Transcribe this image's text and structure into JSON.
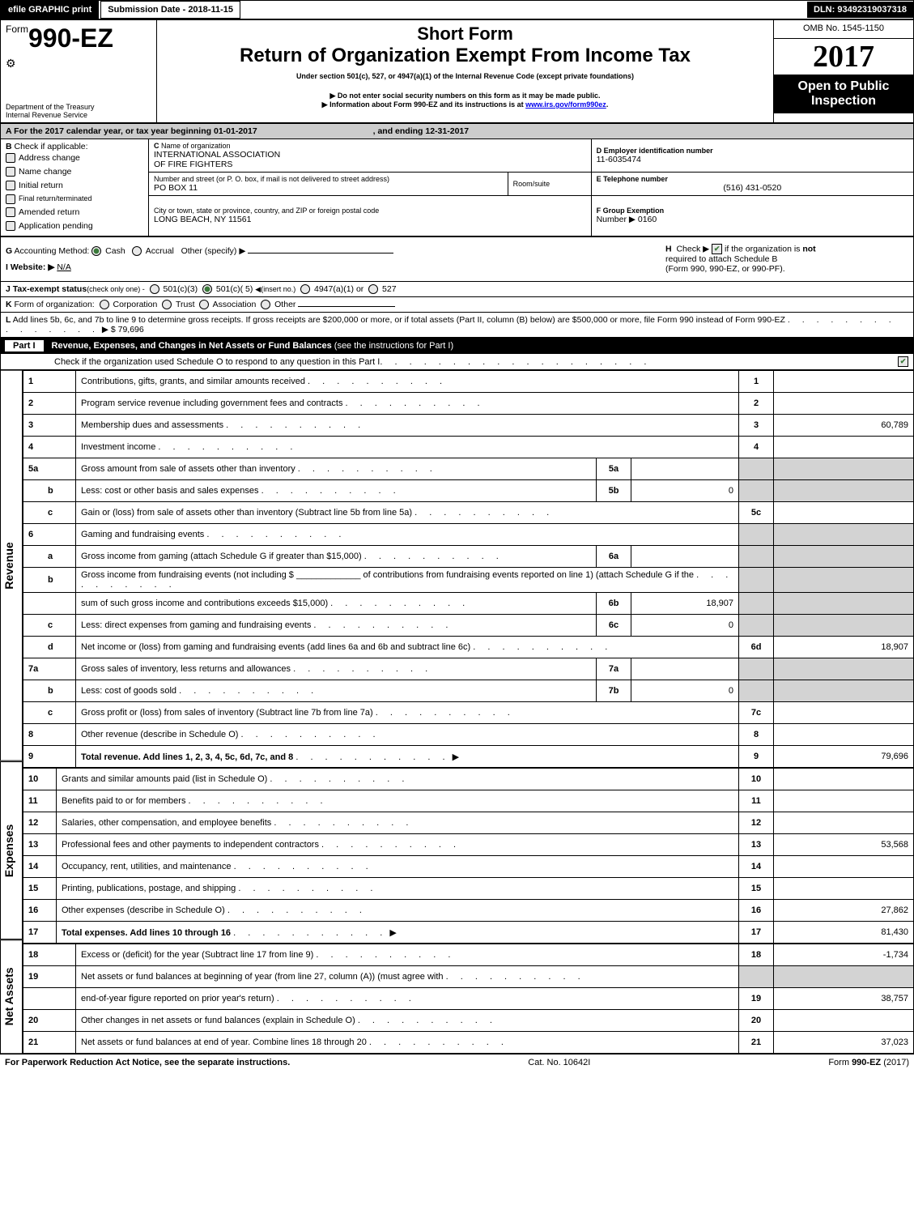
{
  "top_bar": {
    "efile_btn": "efile GRAPHIC print",
    "submission_date_label": "Submission Date - 2018-11-15",
    "dln": "DLN: 93492319037318"
  },
  "header": {
    "form_prefix": "Form",
    "form_number": "990-EZ",
    "dept": "Department of the Treasury",
    "irs": "Internal Revenue Service",
    "short_form": "Short Form",
    "main_title": "Return of Organization Exempt From Income Tax",
    "subtitle": "Under section 501(c), 527, or 4947(a)(1) of the Internal Revenue Code (except private foundations)",
    "note1_prefix": "▶ Do not enter social security numbers on this form as it may be made public.",
    "note2_prefix": "▶ Information about Form 990-EZ and its instructions is at ",
    "note2_link_text": "www.irs.gov/form990ez",
    "note2_link_url": "www.irs.gov/form990ez",
    "note2_suffix": ".",
    "omb": "OMB No. 1545-1150",
    "year": "2017",
    "open_public_l1": "Open to Public",
    "open_public_l2": "Inspection"
  },
  "section_a": {
    "a_label": "A",
    "a_text_prefix": "For the 2017 calendar year, or tax year beginning ",
    "a_begin": "01-01-2017",
    "a_text_mid": ", and ending ",
    "a_end": "12-31-2017",
    "b_label": "B",
    "b_text": "Check if applicable:",
    "b_items": [
      "Address change",
      "Name change",
      "Initial return",
      "Final return/terminated",
      "Amended return",
      "Application pending"
    ],
    "c_label": "C",
    "c_text": "Name of organization",
    "c_org_l1": "INTERNATIONAL ASSOCIATION",
    "c_org_l2": "OF FIRE FIGHTERS",
    "c_addr_label": "Number and street (or P. O. box, if mail is not delivered to street address)",
    "c_addr": "PO BOX 11",
    "c_room_label": "Room/suite",
    "c_city_label": "City or town, state or province, country, and ZIP or foreign postal code",
    "c_city": "LONG BEACH, NY  11561",
    "d_label": "D Employer identification number",
    "d_ein": "11-6035474",
    "e_label": "E Telephone number",
    "e_phone": "(516) 431-0520",
    "f_label": "F Group Exemption",
    "f_label2": "Number ▶",
    "f_num": "0160"
  },
  "section_g": {
    "g_label": "G",
    "g_text": "Accounting Method:",
    "g_cash": "Cash",
    "g_accrual": "Accrual",
    "g_other": "Other (specify) ▶",
    "h_label": "H",
    "h_text_prefix": "Check ▶",
    "h_text_suffix": "if the organization is",
    "h_not": "not",
    "h_text_l2": "required to attach Schedule B",
    "h_text_l3": "(Form 990, 990-EZ, or 990-PF).",
    "i_label": "I Website: ▶",
    "i_website": "N/A",
    "j_label": "J Tax-exempt status",
    "j_note": "(check only one) -",
    "j_501c3": "501(c)(3)",
    "j_501c": "501(c)( 5)",
    "j_501c_insert": "◀(insert no.)",
    "j_4947": "4947(a)(1) or",
    "j_527": "527",
    "k_label": "K",
    "k_text": "Form of organization:",
    "k_corp": "Corporation",
    "k_trust": "Trust",
    "k_assoc": "Association",
    "k_other": "Other",
    "l_label": "L",
    "l_text": "Add lines 5b, 6c, and 7b to line 9 to determine gross receipts. If gross receipts are $200,000 or more, or if total assets (Part II, column (B) below) are $500,000 or more, file Form 990 instead of Form 990-EZ",
    "l_amount": "▶ $ 79,696"
  },
  "part1": {
    "label": "Part I",
    "title": "Revenue, Expenses, and Changes in Net Assets or Fund Balances",
    "title_note": "(see the instructions for Part I)",
    "check_line": "Check if the organization used Schedule O to respond to any question in this Part I"
  },
  "vtabs": {
    "revenue": "Revenue",
    "expenses": "Expenses",
    "netassets": "Net Assets"
  },
  "lines": [
    {
      "n": "1",
      "desc": "Contributions, gifts, grants, and similar amounts received",
      "ref": "1",
      "amt": ""
    },
    {
      "n": "2",
      "desc": "Program service revenue including government fees and contracts",
      "ref": "2",
      "amt": ""
    },
    {
      "n": "3",
      "desc": "Membership dues and assessments",
      "ref": "3",
      "amt": "60,789"
    },
    {
      "n": "4",
      "desc": "Investment income",
      "ref": "4",
      "amt": ""
    },
    {
      "n": "5a",
      "desc": "Gross amount from sale of assets other than inventory",
      "mid": "5a",
      "midamt": "",
      "shadedRight": true
    },
    {
      "n": "b",
      "desc": "Less: cost or other basis and sales expenses",
      "mid": "5b",
      "midamt": "0",
      "shadedRight": true,
      "indent": true
    },
    {
      "n": "c",
      "desc": "Gain or (loss) from sale of assets other than inventory (Subtract line 5b from line 5a)",
      "ref": "5c",
      "amt": "",
      "indent": true
    },
    {
      "n": "6",
      "desc": "Gaming and fundraising events",
      "shadedRight": true
    },
    {
      "n": "a",
      "desc": "Gross income from gaming (attach Schedule G if greater than $15,000)",
      "mid": "6a",
      "midamt": "",
      "shadedRight": true,
      "indent": true
    },
    {
      "n": "b",
      "desc": "Gross income from fundraising events (not including $ _____________ of contributions from fundraising events reported on line 1) (attach Schedule G if the",
      "shadedRight": true,
      "indent": true
    },
    {
      "n": "",
      "desc": "sum of such gross income and contributions exceeds $15,000)",
      "mid": "6b",
      "midamt": "18,907",
      "shadedRight": true,
      "indent": true
    },
    {
      "n": "c",
      "desc": "Less: direct expenses from gaming and fundraising events",
      "mid": "6c",
      "midamt": "0",
      "shadedRight": true,
      "indent": true
    },
    {
      "n": "d",
      "desc": "Net income or (loss) from gaming and fundraising events (add lines 6a and 6b and subtract line 6c)",
      "ref": "6d",
      "amt": "18,907",
      "indent": true
    },
    {
      "n": "7a",
      "desc": "Gross sales of inventory, less returns and allowances",
      "mid": "7a",
      "midamt": "",
      "shadedRight": true
    },
    {
      "n": "b",
      "desc": "Less: cost of goods sold",
      "mid": "7b",
      "midamt": "0",
      "shadedRight": true,
      "indent": true
    },
    {
      "n": "c",
      "desc": "Gross profit or (loss) from sales of inventory (Subtract line 7b from line 7a)",
      "ref": "7c",
      "amt": "",
      "indent": true
    },
    {
      "n": "8",
      "desc": "Other revenue (describe in Schedule O)",
      "ref": "8",
      "amt": ""
    },
    {
      "n": "9",
      "desc": "Total revenue. Add lines 1, 2, 3, 4, 5c, 6d, 7c, and 8",
      "ref": "9",
      "amt": "79,696",
      "bold": true,
      "arrow": true
    }
  ],
  "exp_lines": [
    {
      "n": "10",
      "desc": "Grants and similar amounts paid (list in Schedule O)",
      "ref": "10",
      "amt": ""
    },
    {
      "n": "11",
      "desc": "Benefits paid to or for members",
      "ref": "11",
      "amt": ""
    },
    {
      "n": "12",
      "desc": "Salaries, other compensation, and employee benefits",
      "ref": "12",
      "amt": ""
    },
    {
      "n": "13",
      "desc": "Professional fees and other payments to independent contractors",
      "ref": "13",
      "amt": "53,568"
    },
    {
      "n": "14",
      "desc": "Occupancy, rent, utilities, and maintenance",
      "ref": "14",
      "amt": ""
    },
    {
      "n": "15",
      "desc": "Printing, publications, postage, and shipping",
      "ref": "15",
      "amt": ""
    },
    {
      "n": "16",
      "desc": "Other expenses (describe in Schedule O)",
      "ref": "16",
      "amt": "27,862"
    },
    {
      "n": "17",
      "desc": "Total expenses. Add lines 10 through 16",
      "ref": "17",
      "amt": "81,430",
      "bold": true,
      "arrow": true
    }
  ],
  "na_lines": [
    {
      "n": "18",
      "desc": "Excess or (deficit) for the year (Subtract line 17 from line 9)",
      "ref": "18",
      "amt": "-1,734"
    },
    {
      "n": "19",
      "desc": "Net assets or fund balances at beginning of year (from line 27, column (A)) (must agree with",
      "shadedRight": true
    },
    {
      "n": "",
      "desc": "end-of-year figure reported on prior year's return)",
      "ref": "19",
      "amt": "38,757",
      "indent": true
    },
    {
      "n": "20",
      "desc": "Other changes in net assets or fund balances (explain in Schedule O)",
      "ref": "20",
      "amt": ""
    },
    {
      "n": "21",
      "desc": "Net assets or fund balances at end of year. Combine lines 18 through 20",
      "ref": "21",
      "amt": "37,023"
    }
  ],
  "footer": {
    "left": "For Paperwork Reduction Act Notice, see the separate instructions.",
    "mid": "Cat. No. 10642I",
    "right_prefix": "Form ",
    "right_form": "990-EZ",
    "right_suffix": " (2017)"
  }
}
